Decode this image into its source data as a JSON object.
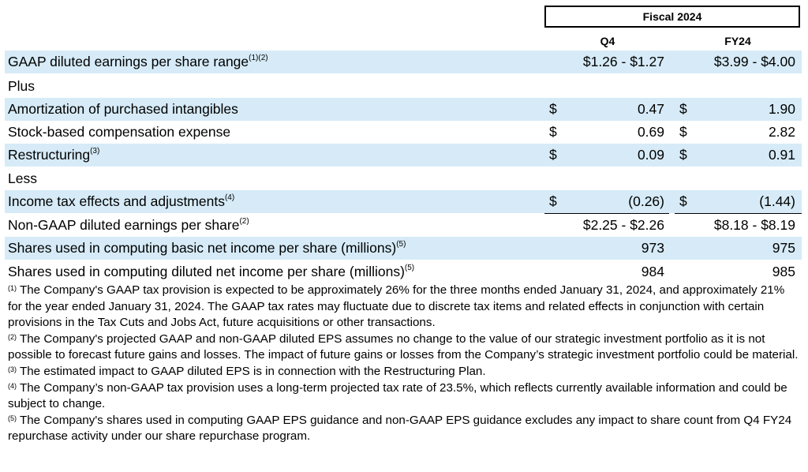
{
  "header": {
    "fiscal_title": "Fiscal 2024",
    "col_q4": "Q4",
    "col_fy24": "FY24"
  },
  "rows": [
    {
      "label": "GAAP diluted earnings per share range",
      "sup": "(1)(2)",
      "d1": "",
      "q4": "$1.26 - $1.27",
      "d2": "",
      "fy24": "$3.99 - $4.00"
    },
    {
      "label": "Plus",
      "sup": "",
      "d1": "",
      "q4": "",
      "d2": "",
      "fy24": ""
    },
    {
      "label": "Amortization of purchased intangibles",
      "sup": "",
      "d1": "$",
      "q4": "0.47",
      "d2": "$",
      "fy24": "1.90"
    },
    {
      "label": "Stock-based compensation expense",
      "sup": "",
      "d1": "$",
      "q4": "0.69",
      "d2": "$",
      "fy24": "2.82"
    },
    {
      "label": "Restructuring",
      "sup": "(3)",
      "d1": "$",
      "q4": "0.09",
      "d2": "$",
      "fy24": "0.91"
    },
    {
      "label": "Less",
      "sup": "",
      "d1": "",
      "q4": "",
      "d2": "",
      "fy24": ""
    },
    {
      "label": "Income tax effects and adjustments",
      "sup": "(4)",
      "d1": "$",
      "q4": "(0.26)",
      "d2": "$",
      "fy24": "(1.44)"
    },
    {
      "label": "Non-GAAP diluted earnings per share",
      "sup": "(2)",
      "d1": "",
      "q4": "$2.25 - $2.26",
      "d2": "",
      "fy24": "$8.18 - $8.19"
    },
    {
      "label": "Shares used in computing basic net income per share (millions)",
      "sup": "(5)",
      "d1": "",
      "q4": "973",
      "d2": "",
      "fy24": "975"
    },
    {
      "label": "Shares used in computing diluted net income per share (millions)",
      "sup": "(5)",
      "d1": "",
      "q4": "984",
      "d2": "",
      "fy24": "985"
    }
  ],
  "footnotes": [
    {
      "mark": "(1)",
      "text": " The Company's GAAP tax provision is expected to be approximately 26% for the three months ended January 31, 2024, and approximately 21% for the year ended January 31, 2024. The GAAP tax rates may fluctuate due to discrete tax items and related effects in conjunction with certain provisions in the Tax Cuts and Jobs Act, future acquisitions or other transactions."
    },
    {
      "mark": "(2)",
      "text": " The Company's projected GAAP and non-GAAP diluted EPS assumes no change to the value of our strategic investment portfolio as it is not possible to forecast future gains and losses. The impact of future gains or losses from the Company’s strategic investment portfolio could be material."
    },
    {
      "mark": "(3)",
      "text": " The estimated impact to GAAP diluted EPS is in connection with the Restructuring Plan."
    },
    {
      "mark": "(4)",
      "text": " The Company’s non-GAAP tax provision uses a long-term projected tax rate of 23.5%, which reflects currently available information and could be subject to change."
    },
    {
      "mark": "(5)",
      "text": " The Company's shares used in computing GAAP EPS guidance and non-GAAP EPS guidance excludes any impact to share count from Q4 FY24 repurchase activity under our share repurchase program."
    }
  ],
  "colors": {
    "row_shade": "#d6ebf7"
  }
}
